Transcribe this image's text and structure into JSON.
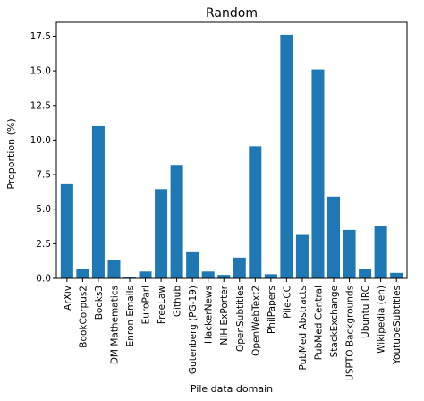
{
  "chart_data": {
    "type": "bar",
    "title": "Random",
    "xlabel": "Pile data domain",
    "ylabel": "Proportion (%)",
    "ylim": [
      0,
      18.5
    ],
    "yticks": [
      "0.0",
      "2.5",
      "5.0",
      "7.5",
      "10.0",
      "12.5",
      "15.0",
      "17.5"
    ],
    "ytick_values": [
      0,
      2.5,
      5,
      7.5,
      10,
      12.5,
      15,
      17.5
    ],
    "grid": false,
    "bar_color": "#1f77b4",
    "categories": [
      "ArXiv",
      "BookCorpus2",
      "Books3",
      "DM Mathematics",
      "Enron Emails",
      "EuroParl",
      "FreeLaw",
      "Github",
      "Gutenberg (PG-19)",
      "HackerNews",
      "NIH ExPorter",
      "OpenSubtitles",
      "OpenWebText2",
      "PhilPapers",
      "Pile-CC",
      "PubMed Abstracts",
      "PubMed Central",
      "StackExchange",
      "USPTO Backgrounds",
      "Ubuntu IRC",
      "Wikipedia (en)",
      "YoutubeSubtitles"
    ],
    "values": [
      6.8,
      0.65,
      11.0,
      1.3,
      0.1,
      0.5,
      6.45,
      8.2,
      1.95,
      0.5,
      0.25,
      1.5,
      9.55,
      0.3,
      17.6,
      3.2,
      15.1,
      5.9,
      3.5,
      0.65,
      3.75,
      0.4
    ]
  }
}
